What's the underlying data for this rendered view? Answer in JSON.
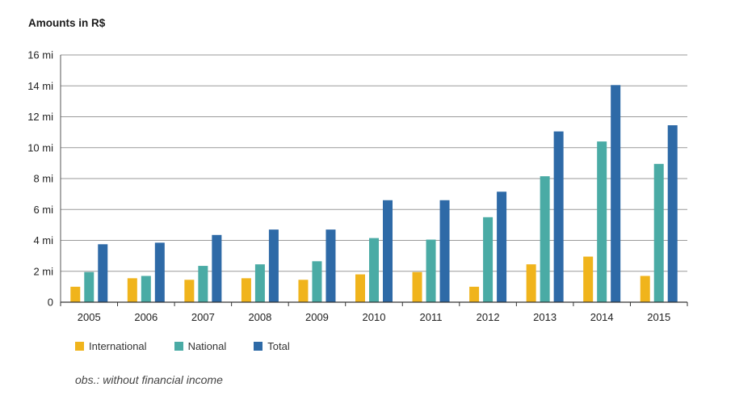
{
  "chart_data": {
    "type": "bar",
    "title": "",
    "units_label": "Amounts in R$",
    "xlabel": "",
    "ylabel": "",
    "categories": [
      "2005",
      "2006",
      "2007",
      "2008",
      "2009",
      "2010",
      "2011",
      "2012",
      "2013",
      "2014",
      "2015"
    ],
    "series": [
      {
        "name": "International",
        "color": "#f0b41c",
        "values": [
          1.0,
          1.55,
          1.45,
          1.55,
          1.45,
          1.8,
          1.95,
          1.0,
          2.45,
          2.95,
          1.7
        ]
      },
      {
        "name": "National",
        "color": "#4aaba5",
        "values": [
          1.95,
          1.7,
          2.35,
          2.45,
          2.65,
          4.15,
          4.05,
          5.5,
          8.15,
          10.4,
          8.95
        ]
      },
      {
        "name": "Total",
        "color": "#2e6aa7",
        "values": [
          3.75,
          3.85,
          4.35,
          4.7,
          4.7,
          6.6,
          6.6,
          7.15,
          11.05,
          14.05,
          11.45
        ]
      }
    ],
    "ylim": [
      0,
      16
    ],
    "yticks": [
      {
        "value": 0,
        "label": "0"
      },
      {
        "value": 2,
        "label": "2 mi"
      },
      {
        "value": 4,
        "label": "4 mi"
      },
      {
        "value": 6,
        "label": "6 mi"
      },
      {
        "value": 8,
        "label": "8 mi"
      },
      {
        "value": 10,
        "label": "10 mi"
      },
      {
        "value": 12,
        "label": "12 mi"
      },
      {
        "value": 14,
        "label": "14 mi"
      },
      {
        "value": 16,
        "label": "16 mi"
      }
    ],
    "grid": true,
    "legend_position": "bottom-left",
    "note": "obs.: without financial income"
  }
}
